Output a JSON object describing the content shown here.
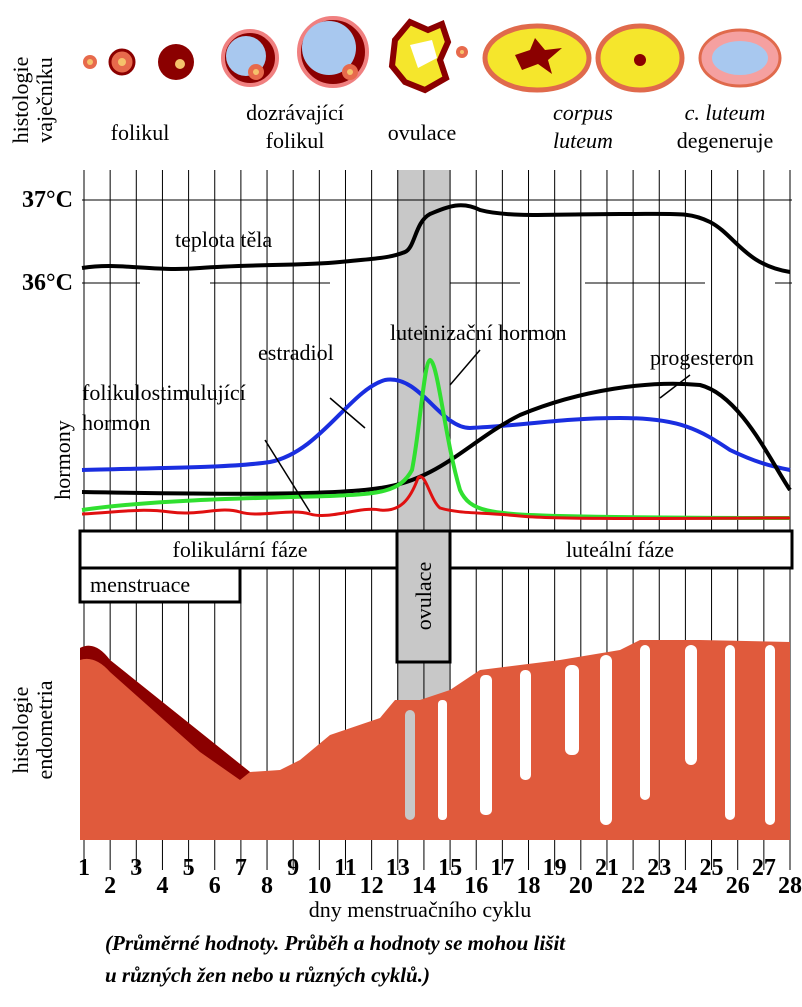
{
  "ovary": {
    "side_label": [
      "histologie",
      "vaječníku"
    ],
    "stages": [
      {
        "lines": [
          "folikul"
        ]
      },
      {
        "lines": [
          "dozrávající",
          "folikul"
        ]
      },
      {
        "lines": [
          "ovulace"
        ]
      },
      {
        "lines": [
          "corpus",
          "luteum"
        ]
      },
      {
        "lines": [
          "c. luteum",
          "degeneruje"
        ]
      }
    ]
  },
  "temperature": {
    "high": "37°C",
    "low": "36°C",
    "label": "teplota těla"
  },
  "hormones": {
    "side_label": "hormony",
    "estradiol": "estradiol",
    "lh": "luteinizační hormon",
    "progesterone": "progesteron",
    "fsh": [
      "folikulostimulující",
      "hormon"
    ]
  },
  "phases": {
    "follicular": "folikulární fáze",
    "luteal": "luteální fáze",
    "menstruation": "menstruace",
    "ovulation": "ovulace"
  },
  "endometrium": {
    "side_label": [
      "histologie",
      "endometria"
    ]
  },
  "x_axis": {
    "days": [
      "1",
      "2",
      "3",
      "4",
      "5",
      "6",
      "7",
      "8",
      "9",
      "10",
      "11",
      "12",
      "13",
      "14",
      "15",
      "16",
      "17",
      "18",
      "19",
      "20",
      "21",
      "22",
      "23",
      "24",
      "25",
      "26",
      "27",
      "28"
    ],
    "title": "dny menstruačního cyklu"
  },
  "note": [
    "(Průměrné hodnoty. Průběh a hodnoty se mohou lišit",
    "u různých žen nebo u různých cyklů.)"
  ]
}
